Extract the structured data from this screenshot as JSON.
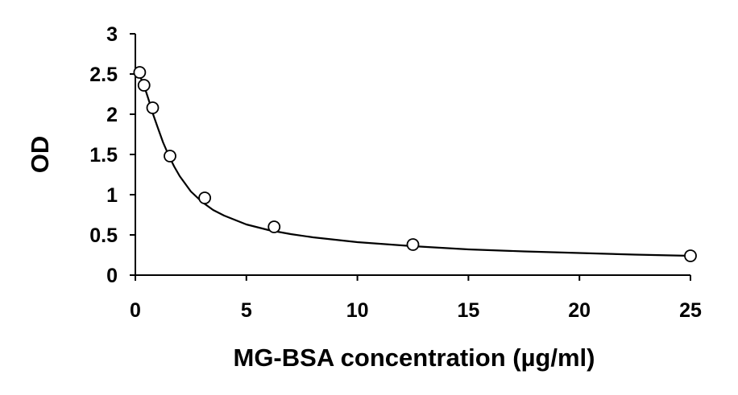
{
  "chart_data": {
    "type": "scatter",
    "title": "",
    "xlabel": "MG-BSA concentration (µg/ml)",
    "ylabel": "OD",
    "xlim": [
      0,
      25
    ],
    "ylim": [
      0,
      3
    ],
    "xticks": [
      0,
      5,
      10,
      15,
      20,
      25
    ],
    "xtick_labels": [
      "0",
      "5",
      "10",
      "15",
      "20",
      "25"
    ],
    "yticks": [
      0,
      0.5,
      1,
      1.5,
      2,
      2.5,
      3
    ],
    "ytick_labels": [
      "0",
      "0.5",
      "1",
      "1.5",
      "2",
      "2.5",
      "3"
    ],
    "grid": false,
    "legend": "none",
    "series": [
      {
        "marker": "open-circle",
        "x": [
          0.195,
          0.39,
          0.78,
          1.56,
          3.125,
          6.25,
          12.5,
          25
        ],
        "y": [
          2.52,
          2.36,
          2.08,
          1.48,
          0.96,
          0.6,
          0.38,
          0.24
        ]
      }
    ],
    "fit_curve": {
      "style": "solid",
      "color": "#000000",
      "x": [
        0,
        0.2,
        0.4,
        0.6,
        0.8,
        1.0,
        1.25,
        1.5,
        1.75,
        2.0,
        2.5,
        3.0,
        3.5,
        4.0,
        5.0,
        6.0,
        7.0,
        8.0,
        10.0,
        12.5,
        15.0,
        17.5,
        20.0,
        22.5,
        25.0
      ],
      "y": [
        2.52,
        2.48,
        2.35,
        2.18,
        2.0,
        1.84,
        1.65,
        1.49,
        1.35,
        1.23,
        1.04,
        0.91,
        0.81,
        0.74,
        0.63,
        0.56,
        0.51,
        0.47,
        0.41,
        0.36,
        0.32,
        0.295,
        0.275,
        0.255,
        0.24
      ]
    }
  }
}
